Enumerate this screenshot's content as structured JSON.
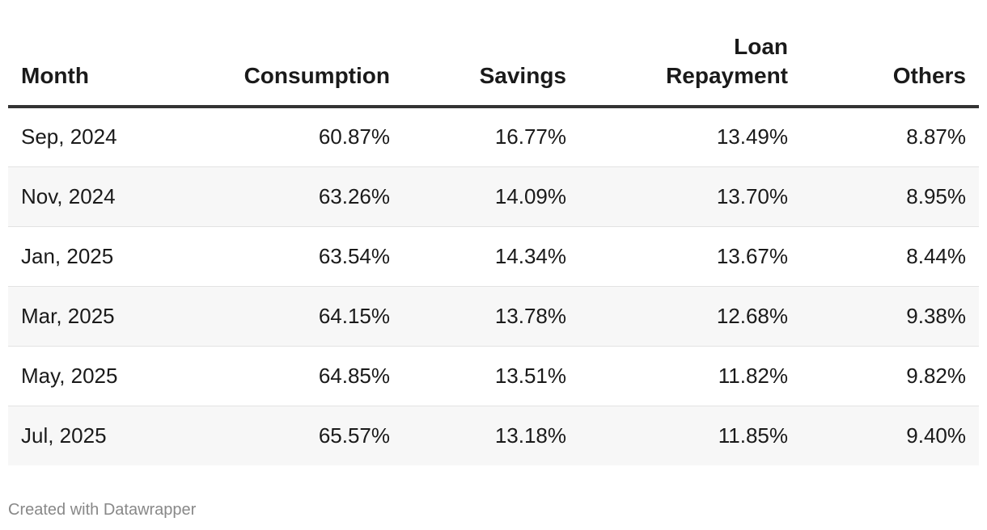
{
  "chart_data": {
    "type": "table",
    "columns": [
      "Month",
      "Consumption",
      "Savings",
      "Loan Repayment",
      "Others"
    ],
    "rows": [
      {
        "month": "Sep, 2024",
        "consumption": "60.87%",
        "savings": "16.77%",
        "loan_repayment": "13.49%",
        "others": "8.87%"
      },
      {
        "month": "Nov, 2024",
        "consumption": "63.26%",
        "savings": "14.09%",
        "loan_repayment": "13.70%",
        "others": "8.95%"
      },
      {
        "month": "Jan, 2025",
        "consumption": "63.54%",
        "savings": "14.34%",
        "loan_repayment": "13.67%",
        "others": "8.44%"
      },
      {
        "month": "Mar, 2025",
        "consumption": "64.15%",
        "savings": "13.78%",
        "loan_repayment": "12.68%",
        "others": "9.38%"
      },
      {
        "month": "May, 2025",
        "consumption": "64.85%",
        "savings": "13.51%",
        "loan_repayment": "11.82%",
        "others": "9.82%"
      },
      {
        "month": "Jul, 2025",
        "consumption": "65.57%",
        "savings": "13.18%",
        "loan_repayment": "11.85%",
        "others": "9.40%"
      }
    ]
  },
  "header": {
    "month": "Month",
    "consumption": "Consumption",
    "savings": "Savings",
    "loan_line1": "Loan",
    "loan_line2": "Repayment",
    "others": "Others"
  },
  "footer": {
    "credit": "Created with Datawrapper"
  }
}
